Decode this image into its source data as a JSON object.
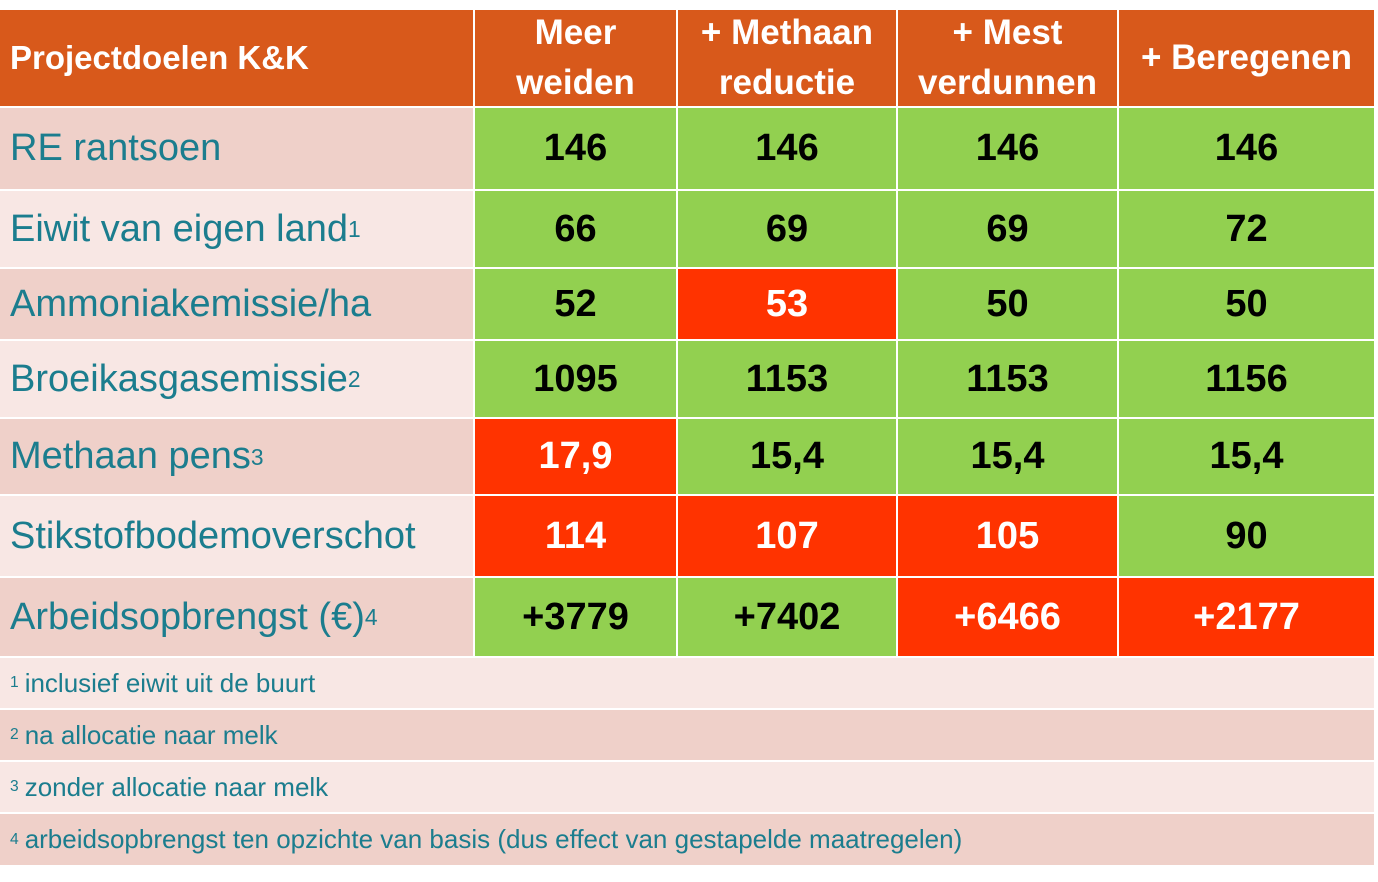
{
  "header": {
    "title": "Projectdoelen K&K",
    "columns": [
      {
        "line1": "Meer",
        "line2": "weiden"
      },
      {
        "line1": "+ Methaan",
        "line2": "reductie"
      },
      {
        "line1": "+ Mest",
        "line2": "verdunnen"
      },
      {
        "line1": "+ Beregenen",
        "line2": ""
      }
    ]
  },
  "rows": [
    {
      "label": "RE rantsoen",
      "sup": "",
      "values": [
        "146",
        "146",
        "146",
        "146"
      ],
      "status": [
        "green",
        "green",
        "green",
        "green"
      ]
    },
    {
      "label": "Eiwit van eigen land",
      "sup": "1",
      "values": [
        "66",
        "69",
        "69",
        "72"
      ],
      "status": [
        "green",
        "green",
        "green",
        "green"
      ]
    },
    {
      "label": "Ammoniakemissie/ha",
      "sup": "",
      "values": [
        "52",
        "53",
        "50",
        "50"
      ],
      "status": [
        "green",
        "red",
        "green",
        "green"
      ]
    },
    {
      "label": "Broeikasgasemissie",
      "sup": "2",
      "values": [
        "1095",
        "1153",
        "1153",
        "1156"
      ],
      "status": [
        "green",
        "green",
        "green",
        "green"
      ]
    },
    {
      "label": "Methaan pens",
      "sup": "3",
      "values": [
        "17,9",
        "15,4",
        "15,4",
        "15,4"
      ],
      "status": [
        "red",
        "green",
        "green",
        "green"
      ]
    },
    {
      "label": "Stikstofbodemoverschot",
      "sup": "",
      "values": [
        "114",
        "107",
        "105",
        "90"
      ],
      "status": [
        "red",
        "red",
        "red",
        "green"
      ]
    },
    {
      "label": "Arbeidsopbrengst (€)",
      "sup": "4",
      "values": [
        "+3779",
        "+7402",
        "+6466",
        "+2177"
      ],
      "status": [
        "green",
        "green",
        "red",
        "red"
      ]
    }
  ],
  "footnotes": [
    {
      "marker": "1",
      "text": "inclusief eiwit uit de buurt"
    },
    {
      "marker": "2",
      "text": "na allocatie naar melk"
    },
    {
      "marker": "3",
      "text": "zonder allocatie naar melk"
    },
    {
      "marker": "4",
      "text": "arbeidsopbrengst ten opzichte van basis (dus effect van gestapelde maatregelen)"
    }
  ],
  "colors": {
    "header": "#d8591b",
    "good": "#92d050",
    "bad": "#ff3300",
    "label_text": "#1b7d8e"
  }
}
